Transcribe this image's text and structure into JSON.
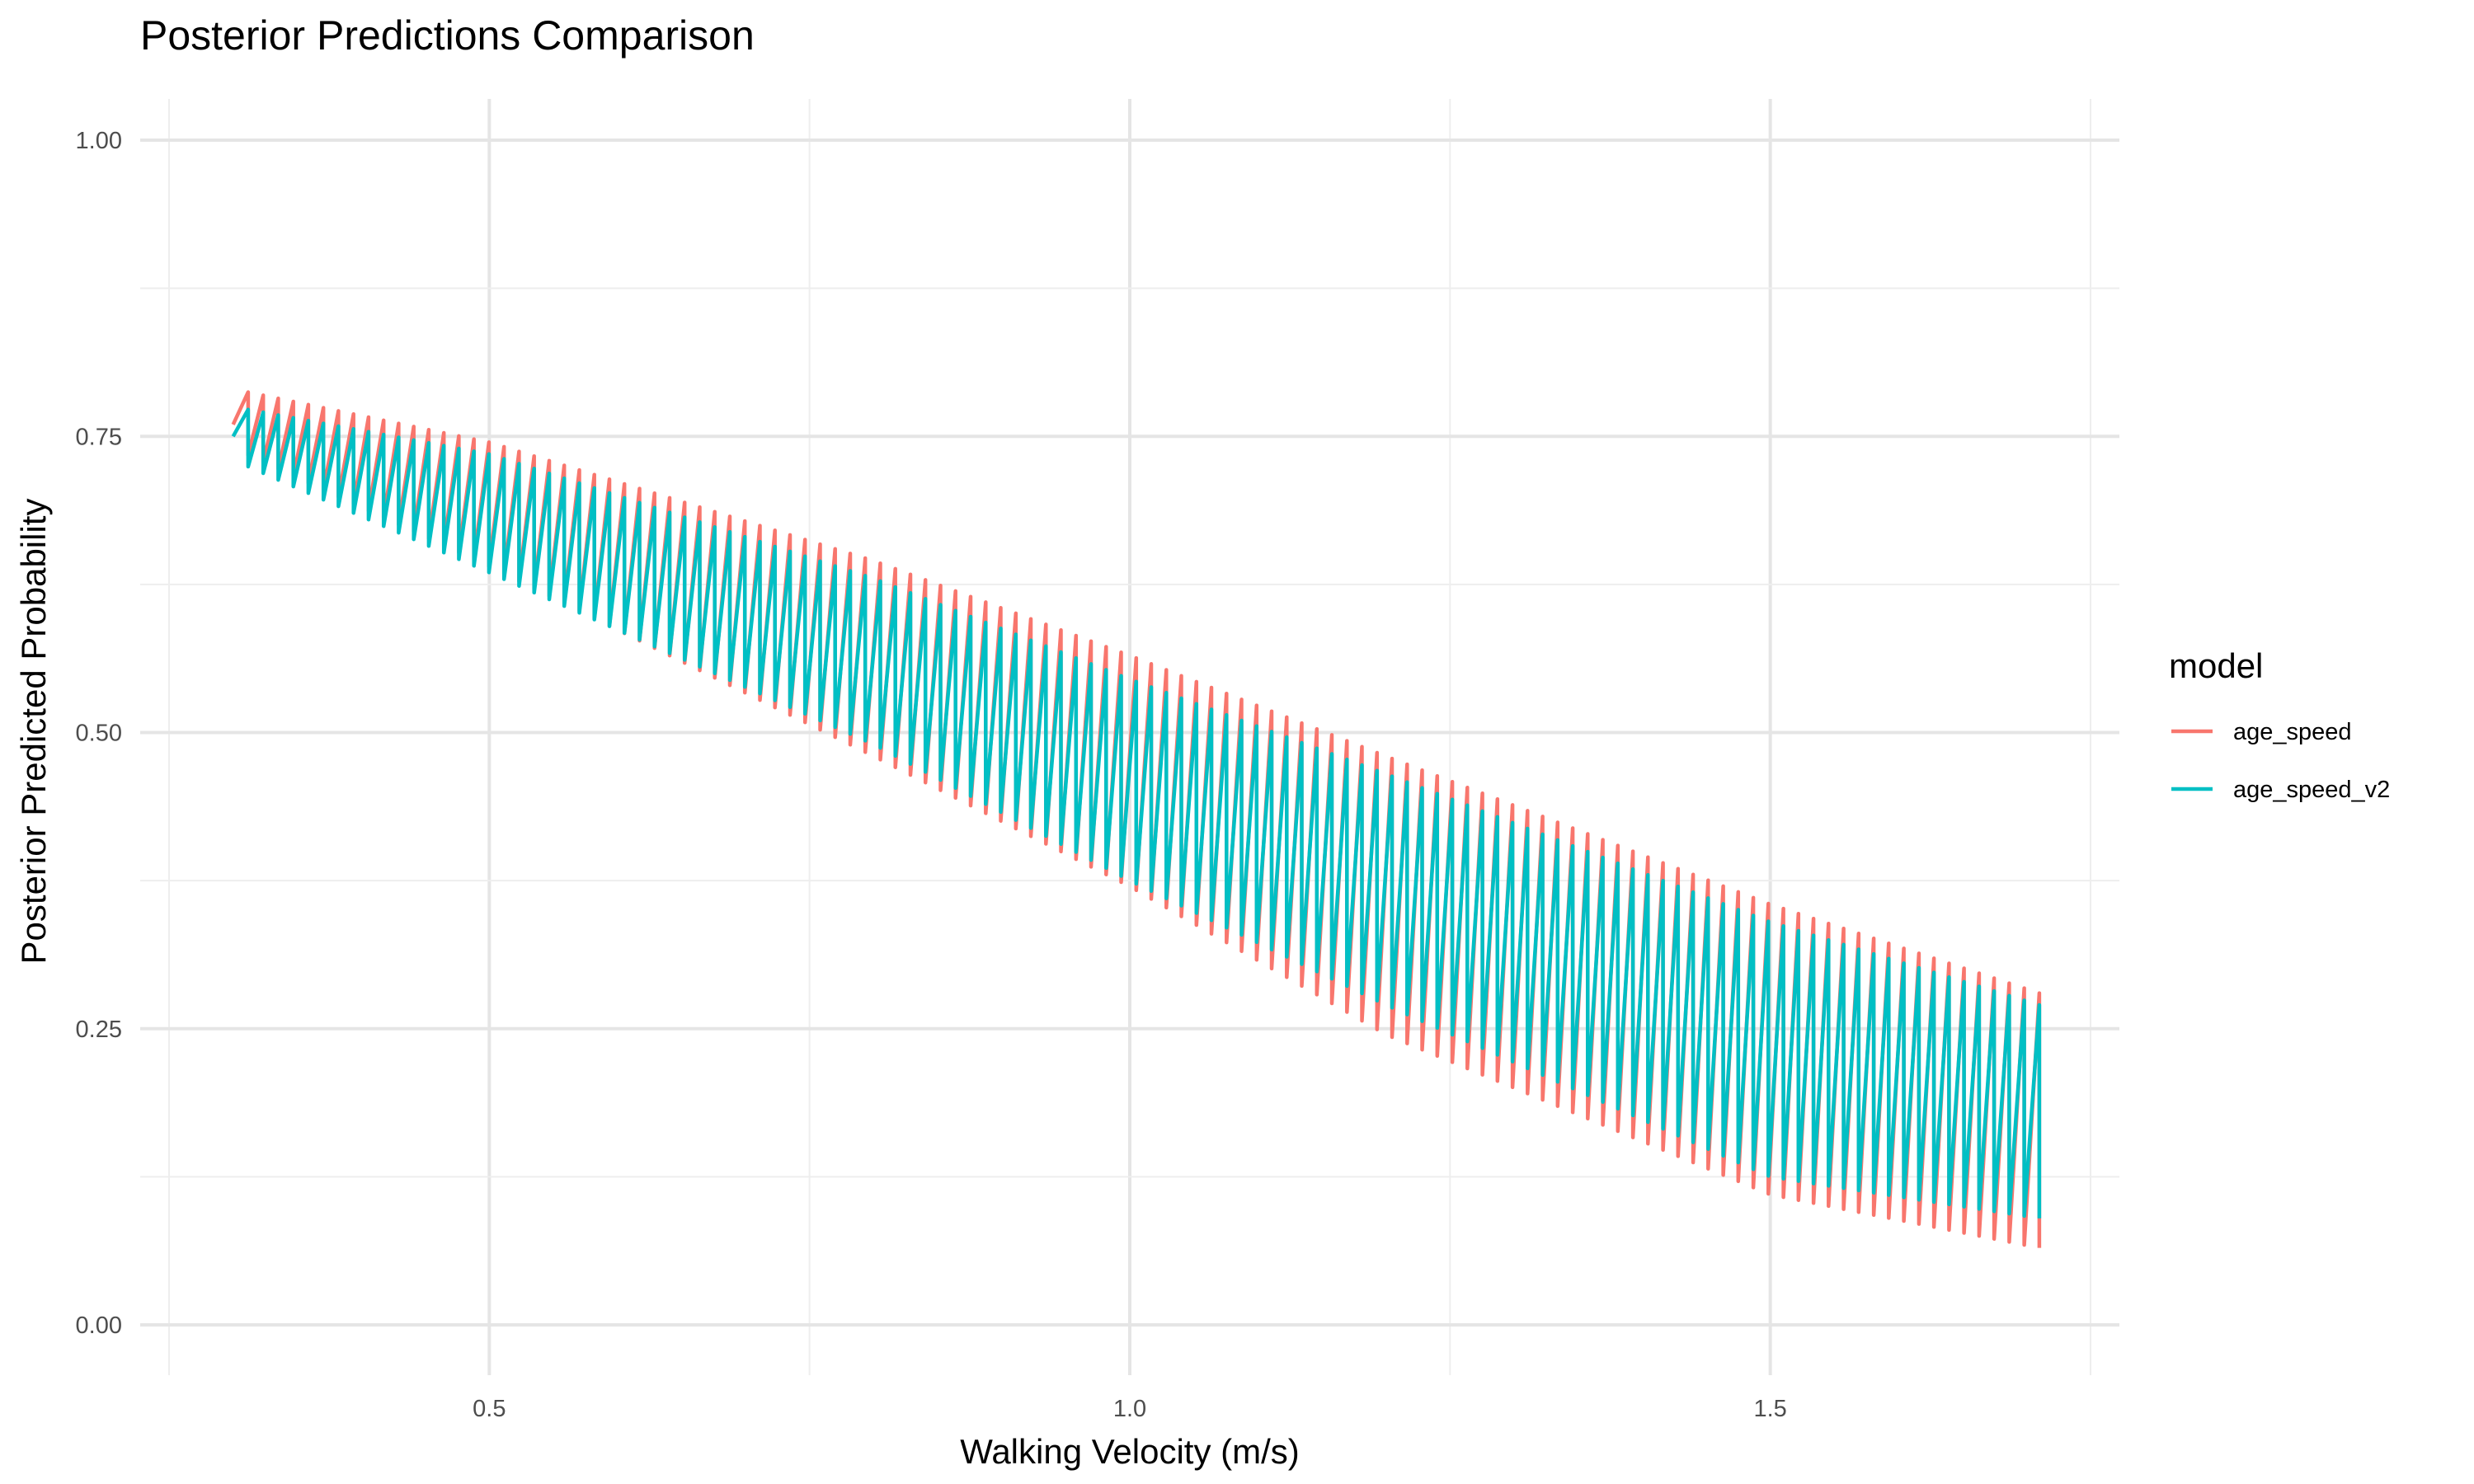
{
  "chart_data": {
    "type": "line",
    "title": "Posterior Predictions Comparison",
    "xlabel": "Walking Velocity (m/s)",
    "ylabel": "Posterior Predicted Probability",
    "xlim": [
      0.25,
      1.75
    ],
    "ylim": [
      0,
      1
    ],
    "x_ticks": [
      0.5,
      1.0,
      1.5
    ],
    "x_tick_labels": [
      "0.5",
      "1.0",
      "1.5"
    ],
    "y_ticks": [
      0,
      0.25,
      0.5,
      0.75,
      1.0
    ],
    "y_tick_labels": [
      "0.00",
      "0.25",
      "0.50",
      "0.75",
      "1.00"
    ],
    "grid": true,
    "legend": {
      "title": "model",
      "position": "right"
    },
    "x_range": [
      0.3,
      1.71
    ],
    "n_points": 120,
    "series": [
      {
        "name": "age_speed",
        "color": "#F8766D",
        "pattern": "sawtooth",
        "upper_envelope": {
          "x": [
            0.3,
            0.5,
            0.8,
            1.0,
            1.2,
            1.5,
            1.71
          ],
          "y": [
            0.79,
            0.745,
            0.645,
            0.565,
            0.48,
            0.355,
            0.28
          ]
        },
        "lower_envelope": {
          "x": [
            0.3,
            0.5,
            0.8,
            1.0,
            1.2,
            1.5,
            1.71
          ],
          "y": [
            0.74,
            0.64,
            0.48,
            0.37,
            0.245,
            0.11,
            0.065
          ]
        }
      },
      {
        "name": "age_speed_v2",
        "color": "#00BFC4",
        "pattern": "sawtooth",
        "upper_envelope": {
          "x": [
            0.3,
            0.5,
            0.8,
            1.0,
            1.2,
            1.5,
            1.71
          ],
          "y": [
            0.775,
            0.735,
            0.63,
            0.545,
            0.465,
            0.34,
            0.27
          ]
        },
        "lower_envelope": {
          "x": [
            0.3,
            0.5,
            0.8,
            1.0,
            1.2,
            1.5,
            1.71
          ],
          "y": [
            0.73,
            0.635,
            0.49,
            0.375,
            0.27,
            0.125,
            0.09
          ]
        }
      }
    ]
  }
}
